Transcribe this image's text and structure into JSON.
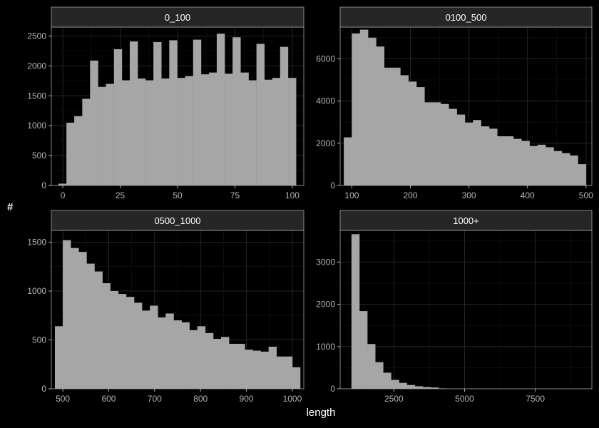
{
  "colors": {
    "background": "#000000",
    "panel": "#000000",
    "grid": "#262626",
    "strip_bg": "#262626",
    "strip_border": "#a6a6a6",
    "bars": "#a6a6a6",
    "text": "#ffffff",
    "tick_text": "#b3b3b3"
  },
  "chart_data": {
    "type": "bar",
    "subtype": "histogram, faceted 2x2",
    "xlabel": "length",
    "ylabel": "#",
    "facets": [
      {
        "name": "0_100",
        "xlim": [
          -5,
          105
        ],
        "ylim": [
          0,
          2650
        ],
        "xticks": [
          0,
          25,
          50,
          75,
          100
        ],
        "xtick_labels": [
          "0",
          "25",
          "50",
          "75",
          "100"
        ],
        "yticks": [
          0,
          500,
          1000,
          1500,
          2000,
          2500
        ],
        "ytick_labels": [
          "0",
          "500",
          "1000",
          "1500",
          "2000",
          "2500"
        ],
        "bin_width": 3.45,
        "bin_centers": [
          -0.2,
          3.3,
          6.7,
          10.2,
          13.6,
          17.1,
          20.5,
          24.0,
          27.4,
          30.9,
          34.3,
          37.8,
          41.2,
          44.7,
          48.1,
          51.6,
          55.0,
          58.5,
          61.9,
          65.4,
          68.8,
          72.3,
          75.7,
          79.2,
          82.6,
          86.1,
          89.5,
          93.0,
          96.4,
          99.9
        ],
        "counts": [
          30,
          1050,
          1160,
          1450,
          2090,
          1650,
          1700,
          2280,
          1760,
          2410,
          1790,
          1760,
          2400,
          1790,
          2430,
          1800,
          1830,
          2440,
          1860,
          1890,
          2540,
          1870,
          2480,
          1890,
          1760,
          2370,
          1770,
          1800,
          2320,
          1800
        ]
      },
      {
        "name": "0100_500",
        "xlim": [
          80,
          510
        ],
        "ylim": [
          0,
          7500
        ],
        "xticks": [
          100,
          200,
          300,
          400,
          500
        ],
        "xtick_labels": [
          "100",
          "200",
          "300",
          "400",
          "500"
        ],
        "yticks": [
          0,
          2000,
          4000,
          6000
        ],
        "ytick_labels": [
          "0",
          "2000",
          "4000",
          "6000"
        ],
        "bin_width": 13.8,
        "bin_centers": [
          93.1,
          106.9,
          120.7,
          134.5,
          148.3,
          162.1,
          175.9,
          189.7,
          203.4,
          217.2,
          231.0,
          244.8,
          258.6,
          272.4,
          286.2,
          300.0,
          313.8,
          327.6,
          341.4,
          355.2,
          369.0,
          382.8,
          396.6,
          410.3,
          424.1,
          437.9,
          451.7,
          465.5,
          479.3,
          493.1
        ],
        "counts": [
          2280,
          7200,
          7380,
          7000,
          6580,
          5580,
          5580,
          5220,
          4920,
          4660,
          3940,
          3940,
          3860,
          3630,
          3360,
          2980,
          3100,
          2800,
          2690,
          2330,
          2330,
          2210,
          2110,
          1870,
          1930,
          1810,
          1630,
          1530,
          1420,
          1010
        ]
      },
      {
        "name": "0500_1000",
        "xlim": [
          475,
          1025
        ],
        "ylim": [
          0,
          1620
        ],
        "xticks": [
          500,
          600,
          700,
          800,
          900,
          1000
        ],
        "xtick_labels": [
          "500",
          "600",
          "700",
          "800",
          "900",
          "1000"
        ],
        "yticks": [
          0,
          500,
          1000,
          1500
        ],
        "ytick_labels": [
          "0",
          "500",
          "1000",
          "1500"
        ],
        "bin_width": 17.25,
        "bin_centers": [
          491.4,
          508.6,
          525.9,
          543.1,
          560.3,
          577.6,
          594.8,
          612.1,
          629.3,
          646.6,
          663.8,
          681.0,
          698.3,
          715.5,
          732.8,
          750.0,
          767.2,
          784.5,
          801.7,
          819.0,
          836.2,
          853.4,
          870.7,
          887.9,
          905.2,
          922.4,
          939.7,
          956.9,
          974.1,
          991.4,
          1008.6
        ],
        "counts": [
          640,
          1520,
          1440,
          1400,
          1280,
          1200,
          1080,
          1000,
          970,
          940,
          880,
          800,
          850,
          730,
          770,
          700,
          680,
          600,
          640,
          570,
          510,
          530,
          460,
          460,
          400,
          390,
          380,
          430,
          330,
          330,
          220
        ]
      },
      {
        "name": "1000+",
        "xlim": [
          600,
          9500
        ],
        "ylim": [
          0,
          3750
        ],
        "xticks": [
          2500,
          5000,
          7500
        ],
        "xtick_labels": [
          "2500",
          "5000",
          "7500"
        ],
        "yticks": [
          0,
          1000,
          2000,
          3000
        ],
        "ytick_labels": [
          "0",
          "1000",
          "2000",
          "3000"
        ],
        "bin_width": 280,
        "bin_centers": [
          1140,
          1420,
          1700,
          1980,
          2260,
          2540,
          2820,
          3100,
          3380,
          3660,
          3940,
          4220
        ],
        "counts": [
          3660,
          1840,
          1060,
          630,
          380,
          210,
          140,
          90,
          60,
          40,
          30,
          10
        ]
      }
    ]
  }
}
